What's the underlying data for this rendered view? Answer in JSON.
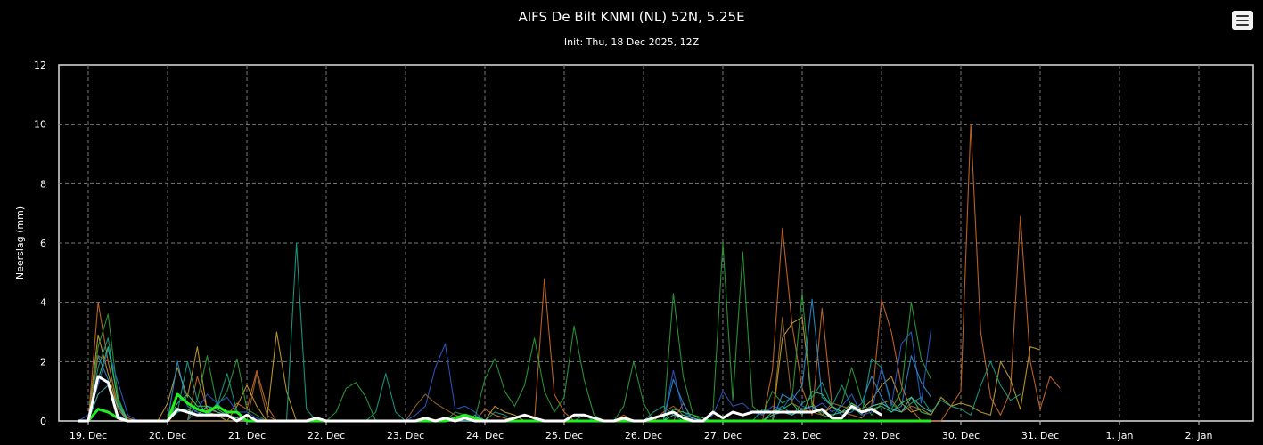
{
  "header": {
    "title": "AIFS De Bilt KNMI (NL) 52N, 5.25E",
    "subtitle": "Init: Thu, 18 Dec 2025, 12Z"
  },
  "menu_icon": "hamburger-menu-icon",
  "chart_data": {
    "type": "line",
    "title": "AIFS De Bilt KNMI (NL) 52N, 5.25E",
    "subtitle": "Init: Thu, 18 Dec 2025, 12Z",
    "ylabel": "Neerslag (mm)",
    "xlabel": "",
    "ylim": [
      0,
      12
    ],
    "yticks": [
      "0",
      "2",
      "4",
      "6",
      "8",
      "10",
      "12"
    ],
    "xticks": [
      "19. Dec",
      "20. Dec",
      "21. Dec",
      "22. Dec",
      "23. Dec",
      "24. Dec",
      "25. Dec",
      "26. Dec",
      "27. Dec",
      "28. Dec",
      "29. Dec",
      "30. Dec",
      "31. Dec",
      "1. Jan",
      "2. Jan"
    ],
    "x_hours_from_first_tick": [
      -3,
      0,
      3,
      6,
      9,
      12,
      15,
      18,
      21,
      24,
      27,
      30,
      33,
      36,
      39,
      42,
      45,
      48,
      51,
      54,
      57,
      60,
      63,
      66,
      69,
      72,
      75,
      78,
      81,
      84,
      87,
      90,
      93,
      96,
      99,
      102,
      105,
      108,
      111,
      114,
      117,
      120,
      123,
      126,
      129,
      132,
      135,
      138,
      141,
      144,
      147,
      150,
      153,
      156,
      159,
      162,
      165,
      168,
      171,
      174,
      177,
      180,
      183,
      186,
      189,
      192,
      195,
      198,
      201,
      204,
      207,
      210,
      213,
      216,
      219,
      222,
      225,
      228,
      231,
      234,
      237,
      240,
      243,
      246,
      249,
      252,
      255,
      258,
      261,
      264,
      267,
      270,
      273,
      276,
      279,
      282,
      285,
      288,
      291,
      294,
      297,
      300,
      303,
      306,
      309,
      312,
      315,
      318,
      321,
      324,
      327,
      330,
      333,
      336,
      339,
      342,
      345,
      348,
      351,
      354,
      357,
      360
    ],
    "grid": true,
    "legend": "none",
    "series": [
      {
        "color": "#cc6a28",
        "values": [
          0,
          0,
          4.0,
          2.0,
          0.5,
          0.1,
          0,
          0,
          0,
          0,
          0,
          0,
          1.5,
          0.4,
          0.3,
          0.2,
          0.6,
          0.4,
          1.7,
          0.5,
          0,
          0,
          0,
          0,
          0,
          0,
          0,
          0,
          0,
          0,
          0,
          0,
          0,
          0,
          0,
          0,
          0,
          0,
          0,
          0,
          0,
          0.4,
          0.2,
          0.1,
          0,
          0,
          0,
          4.8,
          0.9,
          0.3,
          0,
          0,
          0,
          0,
          0,
          0.2,
          0,
          0,
          0,
          0,
          0,
          0.6,
          0,
          0,
          0,
          0,
          0,
          0,
          0,
          0,
          1.7,
          6.5,
          3.2,
          1.1,
          0.2,
          3.8,
          0.5,
          0.3,
          0.2,
          0.1,
          0.5,
          4.1,
          3.0,
          1.2,
          0.4,
          0,
          0,
          0,
          0.5,
          1.0,
          10.0,
          3.0,
          0.8,
          0.2,
          1.0,
          6.9,
          2.0,
          0.4,
          1.5,
          1.1
        ]
      },
      {
        "color": "#c8a030",
        "values": [
          0,
          0,
          2.9,
          1.6,
          0.4,
          0,
          0,
          0,
          0,
          0.6,
          1.8,
          0.8,
          2.5,
          0.3,
          0.2,
          0,
          0.5,
          1.2,
          0.5,
          0,
          3.0,
          1.0,
          0,
          0,
          0,
          0,
          0,
          0,
          0,
          0,
          0,
          0,
          0,
          0,
          0,
          0,
          0,
          0,
          0,
          0,
          0,
          0,
          0.5,
          0.3,
          0.2,
          0,
          0,
          0,
          0,
          0,
          0,
          0,
          0,
          0,
          0,
          0,
          0,
          0,
          0,
          0,
          0,
          0,
          0,
          0,
          0,
          0,
          0,
          0,
          0,
          0,
          0,
          2.8,
          3.3,
          3.5,
          0.6,
          0.2,
          0.5,
          0.3,
          0.6,
          0.4,
          0.7,
          1.2,
          1.5,
          0.6,
          0.3,
          0.4,
          0.2,
          0.8,
          0.5,
          0.6,
          0.5,
          0.3,
          0.2,
          2.0,
          1.4,
          0.4,
          2.5,
          2.4
        ]
      },
      {
        "color": "#2e9e3a",
        "values": [
          0,
          0,
          2.5,
          3.6,
          0.8,
          0,
          0,
          0,
          0,
          0,
          0,
          0,
          0.7,
          2.2,
          0.5,
          1.0,
          2.1,
          0.4,
          0.2,
          0,
          0,
          0,
          0,
          0,
          0,
          0,
          0.3,
          1.1,
          1.3,
          0.8,
          0,
          0,
          0,
          0,
          0,
          0,
          0,
          0,
          0.3,
          0.2,
          0.1,
          1.4,
          2.1,
          1.0,
          0.5,
          1.2,
          2.8,
          1.0,
          0.3,
          0.8,
          3.2,
          1.4,
          0.2,
          0,
          0,
          0.5,
          2.0,
          0.6,
          0,
          0,
          4.3,
          1.5,
          0.2,
          0,
          0.3,
          6.0,
          0.7,
          5.7,
          0.5,
          0.2,
          1.0,
          0.6,
          0.8,
          4.3,
          0.5,
          0.2,
          0.1,
          0.6,
          1.8,
          0.7,
          0.2,
          0.6,
          0.4,
          1.0,
          4.0,
          2.1,
          1.4
        ]
      },
      {
        "color": "#18a088",
        "values": [
          0,
          0,
          1.8,
          2.8,
          0.6,
          0,
          0,
          0,
          0,
          0,
          0.3,
          2.0,
          0.7,
          0.2,
          0.5,
          1.6,
          0.3,
          0,
          0,
          0,
          0,
          0,
          6.0,
          0.4,
          0,
          0,
          0,
          0,
          0,
          0,
          0.3,
          1.6,
          0.3,
          0,
          0,
          0,
          0,
          0,
          0,
          0,
          0.2,
          0,
          0.3,
          0.2,
          0,
          0,
          0,
          0,
          0,
          0,
          0,
          0.2,
          0,
          0,
          0,
          0,
          0,
          0,
          0.3,
          0.5,
          0.2,
          0,
          0,
          0,
          0,
          0,
          0,
          0,
          0,
          0.4,
          0.3,
          0.5,
          0.2,
          0.6,
          0.8,
          1.3,
          0.5,
          1.2,
          0.5,
          0.2,
          2.1,
          1.8,
          0.6,
          0.3,
          0.6,
          0.8,
          0.3,
          0.7,
          0.5,
          0.4,
          0.2,
          1.2,
          2.0,
          1.2,
          0.7,
          0.9
        ]
      },
      {
        "color": "#2a5cc8",
        "values": [
          0,
          0.2,
          1.2,
          2.4,
          1.3,
          0.2,
          0,
          0,
          0,
          0,
          0,
          0,
          0.4,
          0.9,
          0.6,
          0.8,
          0.3,
          0.3,
          0.1,
          0,
          0,
          0,
          0,
          0,
          0,
          0,
          0,
          0,
          0,
          0,
          0,
          0,
          0,
          0,
          0.2,
          0.5,
          1.8,
          2.6,
          0.4,
          0.5,
          0.3,
          0,
          0,
          0,
          0,
          0,
          0,
          0,
          0,
          0,
          0,
          0,
          0,
          0,
          0,
          0,
          0,
          0,
          0,
          0,
          1.7,
          0.3,
          0.1,
          0,
          0.2,
          1.0,
          0.5,
          0.6,
          0.3,
          0.2,
          0.5,
          0.4,
          0.9,
          0.5,
          0.4,
          0.6,
          0.3,
          0.5,
          0.9,
          0.2,
          0.3,
          1.8,
          0.5,
          2.6,
          3.0,
          0.6,
          3.1
        ]
      },
      {
        "color": "#2a8fd0",
        "values": [
          0,
          0,
          2.2,
          1.4,
          0.2,
          0,
          0,
          0,
          0,
          0,
          2.0,
          0.5,
          0.3,
          0.2,
          0.6,
          0.2,
          0.1,
          0,
          0,
          0,
          0,
          0,
          0,
          0,
          0,
          0,
          0,
          0,
          0,
          0,
          0,
          0,
          0,
          0,
          0,
          0,
          0,
          0,
          0,
          0,
          0,
          0,
          0,
          0,
          0,
          0,
          0,
          0,
          0,
          0,
          0,
          0,
          0,
          0,
          0,
          0,
          0,
          0,
          0,
          0,
          1.4,
          0.6,
          0,
          0,
          0,
          0,
          0,
          0,
          0,
          0,
          0,
          0.9,
          0.7,
          1.2,
          4.1,
          0.8,
          0.5,
          0.2,
          0.3,
          0.6,
          1.5,
          0.8,
          0.3,
          0.5,
          2.2,
          1.3,
          0.8
        ]
      },
      {
        "color": "#30c860",
        "values": [
          0,
          0,
          1.4,
          2.5,
          0.7,
          0,
          0,
          0,
          0,
          0,
          0.6,
          0.9,
          0.5,
          0.5,
          0.4,
          0.2,
          0.1,
          0,
          0,
          0,
          0,
          0,
          0,
          0,
          0,
          0,
          0,
          0,
          0,
          0,
          0,
          0,
          0,
          0,
          0,
          0,
          0,
          0,
          0,
          0,
          0,
          0,
          0,
          0,
          0,
          0,
          0,
          0,
          0,
          0,
          0,
          0,
          0,
          0,
          0,
          0,
          0,
          0,
          0,
          0,
          0.4,
          0.3,
          0.2,
          0.1,
          0,
          0,
          0,
          0,
          0,
          0,
          0.3,
          0.4,
          0.6,
          0.2,
          1.0,
          0.9,
          0.5,
          0.3,
          0.6,
          0.3,
          0.4,
          0.5,
          0.3,
          0.6,
          0.8,
          0.3,
          0.2
        ]
      },
      {
        "color": "#9a6a30",
        "values": [
          0,
          0,
          2.2,
          2.0,
          0.4,
          0,
          0,
          0,
          0,
          0,
          0,
          0,
          0,
          0,
          0,
          0,
          0,
          0,
          1.6,
          0.2,
          0,
          0,
          0,
          0,
          0,
          0,
          0,
          0,
          0,
          0,
          0,
          0,
          0,
          0,
          0.5,
          0.9,
          0.6,
          0.4,
          0.2,
          0.1,
          0,
          0,
          0,
          0,
          0,
          0,
          0,
          0,
          0,
          0,
          0,
          0,
          0,
          0,
          0,
          0,
          0,
          0,
          0,
          0.3,
          0.5,
          0.2,
          0,
          0,
          0,
          0,
          0,
          0,
          0,
          0,
          0,
          3.5,
          0.6,
          0.4,
          0.3,
          0.2,
          0.6,
          0.5,
          0.4,
          0.3,
          0.5,
          0.6,
          0.7,
          0.3,
          0.5,
          0.4,
          0.2
        ]
      },
      {
        "color": "#4abfb0",
        "values": [
          0,
          0,
          0.9,
          1.2,
          0.5,
          0,
          0,
          0,
          0,
          0,
          0.3,
          0.4,
          0.2,
          0.5,
          0.3,
          0.2,
          0.1,
          0,
          0,
          0,
          0,
          0,
          0,
          0,
          0,
          0,
          0,
          0,
          0,
          0,
          0,
          0,
          0,
          0,
          0,
          0,
          0,
          0,
          0,
          0,
          0,
          0,
          0,
          0,
          0,
          0,
          0,
          0,
          0,
          0,
          0,
          0,
          0,
          0,
          0,
          0,
          0,
          0,
          0,
          0,
          0.2,
          0.2,
          0.1,
          0,
          0,
          0,
          0,
          0,
          0,
          0,
          0.2,
          0.3,
          0.2,
          0.4,
          0.5,
          0.3,
          0.2,
          0.3,
          0.4,
          0.3,
          0.5,
          0.6,
          0.4,
          0.3,
          0.8,
          0.5,
          0.3
        ]
      },
      {
        "color": "#22ee22",
        "width": 3,
        "values": [
          0,
          0,
          0.4,
          0.3,
          0.1,
          0,
          0,
          0,
          0,
          0,
          0.9,
          0.6,
          0.4,
          0.3,
          0.5,
          0.3,
          0.3,
          0,
          0,
          0,
          0,
          0,
          0,
          0,
          0,
          0,
          0,
          0,
          0,
          0,
          0,
          0,
          0,
          0,
          0,
          0,
          0,
          0,
          0.1,
          0.2,
          0.1,
          0,
          0,
          0,
          0,
          0,
          0,
          0,
          0,
          0,
          0,
          0,
          0,
          0,
          0,
          0,
          0,
          0,
          0,
          0,
          0,
          0,
          0,
          0,
          0,
          0,
          0,
          0,
          0,
          0,
          0,
          0,
          0,
          0,
          0,
          0,
          0,
          0,
          0,
          0,
          0,
          0,
          0,
          0,
          0,
          0,
          0
        ]
      },
      {
        "color": "#ffffff",
        "width": 3,
        "values": [
          0,
          0,
          1.5,
          1.3,
          0.1,
          0,
          0,
          0,
          0,
          0,
          0.4,
          0.3,
          0.2,
          0.2,
          0.2,
          0.2,
          0,
          0.2,
          0,
          0,
          0,
          0,
          0,
          0,
          0.1,
          0,
          0,
          0,
          0,
          0,
          0,
          0,
          0,
          0,
          0,
          0.1,
          0,
          0.1,
          0,
          0.1,
          0,
          0,
          0,
          0,
          0.1,
          0.2,
          0.1,
          0,
          0,
          0,
          0.2,
          0.2,
          0.1,
          0,
          0,
          0.1,
          0,
          0,
          0.1,
          0.2,
          0.3,
          0.1,
          0,
          0,
          0.3,
          0.1,
          0.3,
          0.2,
          0.3,
          0.3,
          0.3,
          0.3,
          0.3,
          0.3,
          0.3,
          0.4,
          0.1,
          0.1,
          0.5,
          0.3,
          0.4,
          0.2
        ]
      }
    ]
  }
}
